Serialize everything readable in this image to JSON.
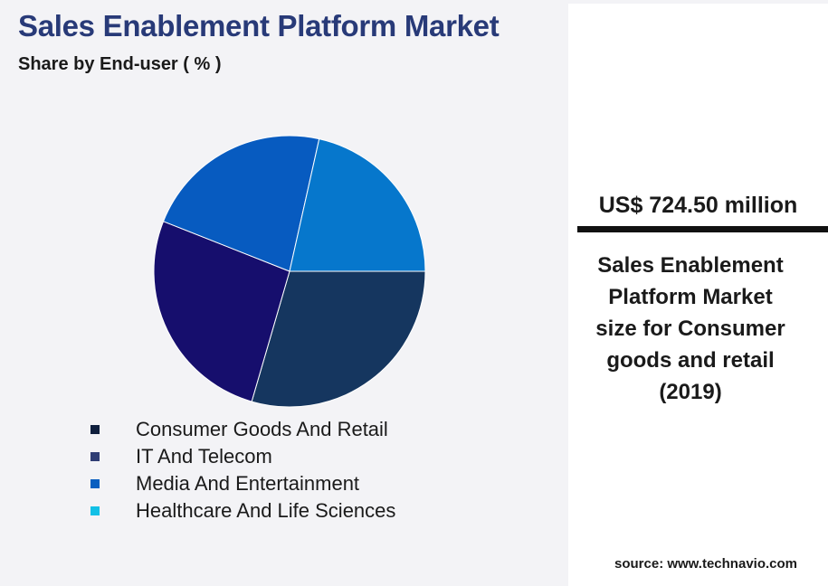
{
  "header": {
    "title": "Sales Enablement Platform Market",
    "subtitle": "Share by End-user ( % )"
  },
  "chart_data": {
    "type": "pie",
    "categories": [
      "Consumer Goods And Retail",
      "IT And Telecom",
      "Media And Entertainment",
      "Healthcare And Life Sciences"
    ],
    "values": [
      29.5,
      26.5,
      22.5,
      21.5
    ],
    "colors": [
      "#15365f",
      "#160e6d",
      "#075bc0",
      "#0677cc"
    ],
    "legend_colors": [
      "#0f1f3d",
      "#2f3d74",
      "#0a5fc0",
      "#12c0e6"
    ],
    "start": "3 o'clock, clockwise",
    "legend_position": "bottom"
  },
  "stat": {
    "value": "US$ 724.50 million",
    "caption_lines": [
      "Sales Enablement",
      "Platform Market",
      "size for Consumer",
      "goods and retail",
      "(2019)"
    ]
  },
  "source": "source: www.technavio.com"
}
